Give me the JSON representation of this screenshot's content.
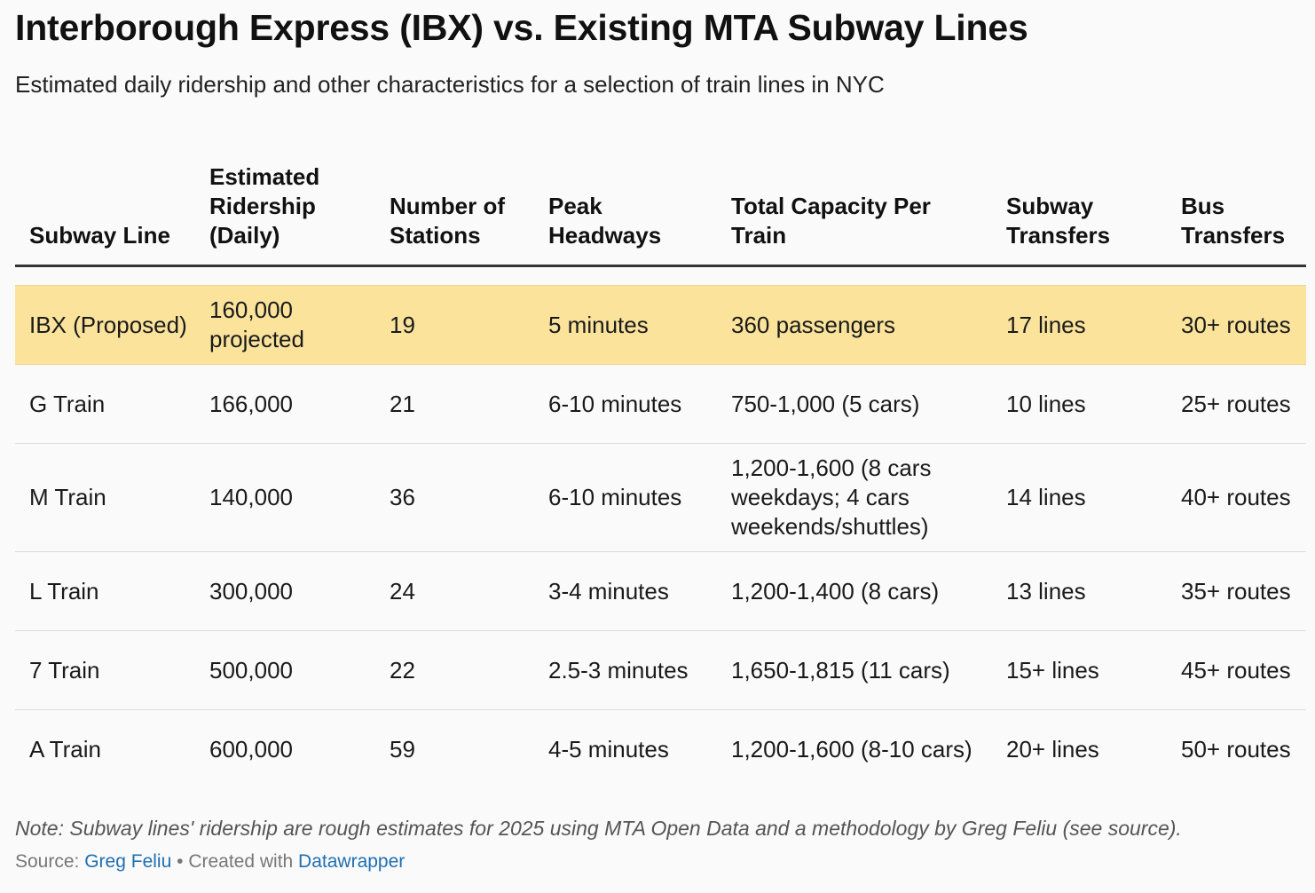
{
  "title": "Interborough Express (IBX) vs. Existing MTA Subway Lines",
  "subtitle": "Estimated daily ridership and other characteristics for a selection of train lines in NYC",
  "colors": {
    "highlight": "#fbe39c",
    "link": "#1f6fb2"
  },
  "chart_data": {
    "type": "table",
    "columns": [
      "Subway Line",
      "Estimated Ridership (Daily)",
      "Number of Stations",
      "Peak Headways",
      "Total Capacity Per Train",
      "Subway Transfers",
      "Bus Transfers"
    ],
    "rows": [
      [
        "IBX (Proposed)",
        "160,000 projected",
        "19",
        "5 minutes",
        "360 passengers",
        "17 lines",
        "30+ routes"
      ],
      [
        "G Train",
        "166,000",
        "21",
        "6-10 minutes",
        "750-1,000 (5 cars)",
        "10 lines",
        "25+ routes"
      ],
      [
        "M Train",
        "140,000",
        "36",
        "6-10 minutes",
        "1,200-1,600 (8 cars weekdays; 4 cars weekends/shuttles)",
        "14 lines",
        "40+ routes"
      ],
      [
        "L Train",
        "300,000",
        "24",
        "3-4 minutes",
        "1,200-1,400 (8 cars)",
        "13 lines",
        "35+ routes"
      ],
      [
        "7 Train",
        "500,000",
        "22",
        "2.5-3 minutes",
        "1,650-1,815 (11 cars)",
        "15+ lines",
        "45+ routes"
      ],
      [
        "A Train",
        "600,000",
        "59",
        "4-5 minutes",
        "1,200-1,600 (8-10 cars)",
        "20+ lines",
        "50+ routes"
      ]
    ],
    "highlighted_row": 0
  },
  "footer": {
    "note": "Note: Subway lines' ridership are rough estimates for 2025 using MTA Open Data and a methodology by Greg Feliu (see source).",
    "source_label": "Source:",
    "source_link": "Greg Feliu",
    "separator": "•",
    "created_with": "Created with",
    "tool_link": "Datawrapper"
  }
}
